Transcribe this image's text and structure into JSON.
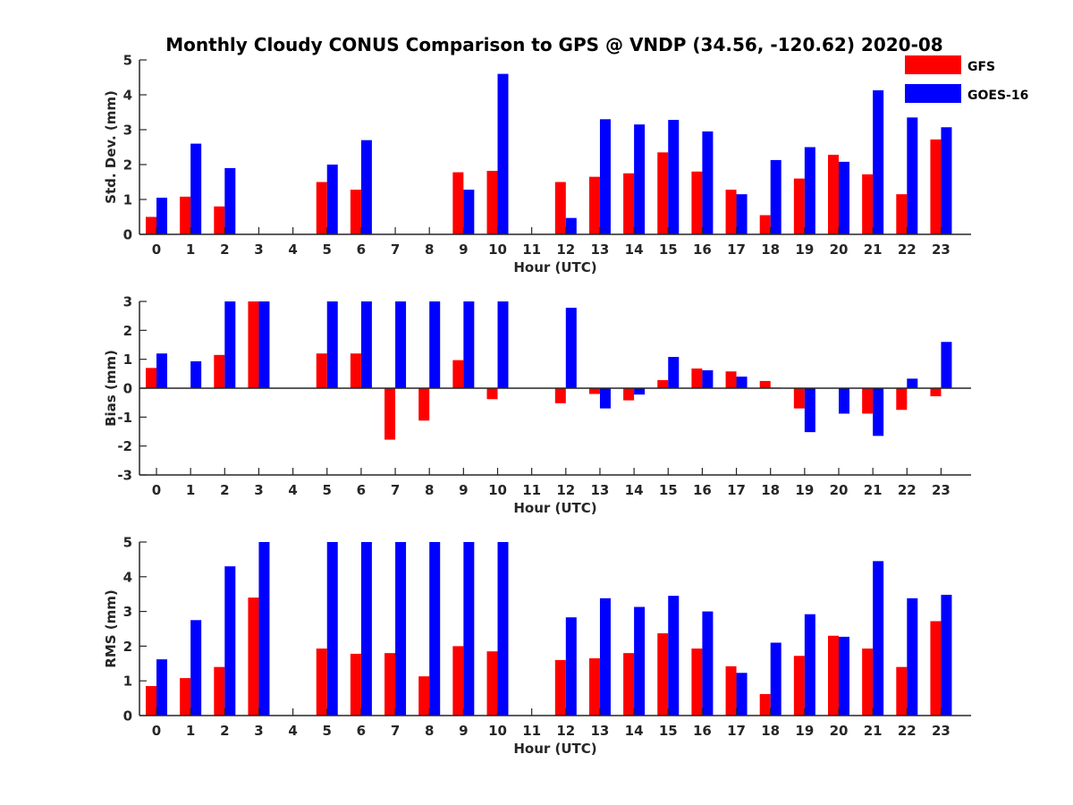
{
  "title": "Monthly Cloudy CONUS Comparison to GPS @ VNDP (34.56, -120.62) 2020-08",
  "legend": {
    "position": "top-right",
    "entries": [
      {
        "name": "GFS",
        "color": "#ff0000"
      },
      {
        "name": "GOES-16",
        "color": "#0000ff"
      }
    ]
  },
  "colors": {
    "gfs": "#ff0000",
    "goes16": "#0000ff",
    "axis": "#262626"
  },
  "chart_data": [
    {
      "type": "bar",
      "xlabel": "Hour (UTC)",
      "ylabel": "Std. Dev. (mm)",
      "ylim": [
        0,
        5
      ],
      "yticks": [
        "0",
        "1",
        "2",
        "3",
        "4",
        "5"
      ],
      "categories": [
        "0",
        "1",
        "2",
        "3",
        "4",
        "5",
        "6",
        "7",
        "8",
        "9",
        "10",
        "11",
        "12",
        "13",
        "14",
        "15",
        "16",
        "17",
        "18",
        "19",
        "20",
        "21",
        "22",
        "23"
      ],
      "series": [
        {
          "name": "GFS",
          "values": [
            0.5,
            1.08,
            0.8,
            null,
            null,
            1.5,
            1.28,
            null,
            null,
            1.78,
            1.82,
            null,
            1.5,
            1.65,
            1.75,
            2.35,
            1.8,
            1.28,
            0.55,
            1.6,
            2.28,
            1.72,
            1.15,
            2.72
          ]
        },
        {
          "name": "GOES-16",
          "values": [
            1.05,
            2.6,
            1.9,
            null,
            null,
            2.0,
            2.7,
            null,
            null,
            1.28,
            4.6,
            null,
            0.47,
            3.3,
            3.15,
            3.28,
            2.95,
            1.15,
            2.13,
            2.5,
            2.08,
            4.13,
            3.35,
            3.07
          ]
        }
      ]
    },
    {
      "type": "bar",
      "xlabel": "Hour (UTC)",
      "ylabel": "Bias (mm)",
      "ylim": [
        -3,
        3
      ],
      "yticks": [
        "-3",
        "-2",
        "-1",
        "0",
        "1",
        "2",
        "3"
      ],
      "categories": [
        "0",
        "1",
        "2",
        "3",
        "4",
        "5",
        "6",
        "7",
        "8",
        "9",
        "10",
        "11",
        "12",
        "13",
        "14",
        "15",
        "16",
        "17",
        "18",
        "19",
        "20",
        "21",
        "22",
        "23"
      ],
      "series": [
        {
          "name": "GFS",
          "values": [
            0.7,
            null,
            1.15,
            3.0,
            null,
            1.2,
            1.2,
            -1.78,
            -1.12,
            0.97,
            -0.38,
            null,
            -0.52,
            -0.2,
            -0.42,
            0.28,
            0.68,
            0.58,
            0.25,
            -0.7,
            null,
            -0.88,
            -0.75,
            -0.28
          ]
        },
        {
          "name": "GOES-16",
          "values": [
            1.2,
            0.93,
            3.0,
            3.0,
            null,
            3.0,
            3.0,
            3.0,
            3.0,
            3.0,
            3.0,
            null,
            2.78,
            -0.7,
            -0.22,
            1.08,
            0.62,
            0.4,
            0.02,
            -1.52,
            -0.88,
            -1.65,
            0.33,
            1.6
          ]
        }
      ]
    },
    {
      "type": "bar",
      "xlabel": "Hour (UTC)",
      "ylabel": "RMS (mm)",
      "ylim": [
        0,
        5
      ],
      "yticks": [
        "0",
        "1",
        "2",
        "3",
        "4",
        "5"
      ],
      "categories": [
        "0",
        "1",
        "2",
        "3",
        "4",
        "5",
        "6",
        "7",
        "8",
        "9",
        "10",
        "11",
        "12",
        "13",
        "14",
        "15",
        "16",
        "17",
        "18",
        "19",
        "20",
        "21",
        "22",
        "23"
      ],
      "series": [
        {
          "name": "GFS",
          "values": [
            0.85,
            1.08,
            1.4,
            3.4,
            null,
            1.93,
            1.78,
            1.8,
            1.13,
            2.0,
            1.85,
            null,
            1.6,
            1.65,
            1.8,
            2.37,
            1.93,
            1.42,
            0.62,
            1.72,
            2.3,
            1.93,
            1.4,
            2.72
          ]
        },
        {
          "name": "GOES-16",
          "values": [
            1.62,
            2.75,
            4.3,
            5.0,
            null,
            5.0,
            5.0,
            5.0,
            5.0,
            5.0,
            5.0,
            null,
            2.83,
            3.38,
            3.13,
            3.45,
            3.0,
            1.23,
            2.1,
            2.92,
            2.27,
            4.45,
            3.38,
            3.48
          ]
        }
      ]
    }
  ]
}
